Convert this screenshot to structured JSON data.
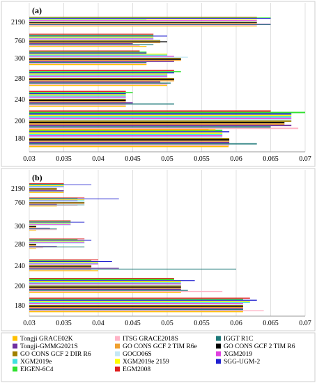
{
  "chart_data": [
    {
      "type": "bar",
      "orientation": "horizontal",
      "panel_label": "(a)",
      "xlim": [
        0.03,
        0.07
      ],
      "x_ticks": [
        "0.03",
        "0.035",
        "0.04",
        "0.045",
        "0.05",
        "0.055",
        "0.06",
        "0.065",
        "0.07"
      ],
      "categories": [
        "180",
        "200",
        "240",
        "280",
        "300",
        "760",
        "2190"
      ],
      "series": [
        {
          "name": "Tongji GRACE02K",
          "values": [
            0.0589,
            0.057,
            0.044,
            0.05,
            0.047,
            0.047,
            0.063
          ]
        },
        {
          "name": "ITSG GRACE2018S",
          "values": [
            0.059,
            0.069,
            0.044,
            0.05,
            0.047,
            0.046,
            0.063
          ]
        },
        {
          "name": "IGGT R1C",
          "values": [
            0.063,
            0.065,
            0.051,
            0.0505,
            0.047,
            0.048,
            0.065
          ]
        },
        {
          "name": "Tongji-GMMG2021S",
          "values": [
            0.059,
            0.068,
            0.045,
            0.049,
            0.051,
            0.045,
            0.065
          ]
        },
        {
          "name": "GO CONS GCF 2 TIM R6e",
          "values": [
            0.059,
            0.067,
            0.044,
            0.051,
            0.052,
            0.049,
            0.063
          ]
        },
        {
          "name": "GO CONS GCF 2 TIM R6",
          "values": [
            0.059,
            0.067,
            0.044,
            0.051,
            0.052,
            0.05,
            0.063
          ]
        },
        {
          "name": "GO CONS GCF 2 DIR R6",
          "values": [
            0.059,
            0.068,
            0.044,
            0.051,
            0.052,
            0.049,
            0.063
          ]
        },
        {
          "name": "GOCO06S",
          "values": [
            0.058,
            0.068,
            0.044,
            0.05,
            0.053,
            0.049,
            0.063
          ]
        },
        {
          "name": "XGM2019",
          "values": [
            0.058,
            0.068,
            0.044,
            0.05,
            0.051,
            0.048,
            0.063
          ]
        },
        {
          "name": "XGM2019e",
          "values": [
            0.058,
            0.068,
            0.044,
            0.05,
            0.05,
            0.048,
            0.047
          ]
        },
        {
          "name": "XGM2019e 2159",
          "values": [
            0.058,
            0.068,
            0.044,
            0.05,
            0.05,
            0.048,
            0.063
          ]
        },
        {
          "name": "SGG-UGM-2",
          "values": [
            0.059,
            0.068,
            0.044,
            0.051,
            0.047,
            0.05,
            0.065
          ]
        },
        {
          "name": "EIGEN-6C4",
          "values": [
            0.058,
            0.07,
            0.045,
            0.052,
            0.047,
            0.048,
            0.065
          ]
        },
        {
          "name": "EGM2008",
          "values": [
            0.056,
            0.065,
            0.044,
            0.051,
            0.046,
            0.048,
            0.063
          ]
        }
      ]
    },
    {
      "type": "bar",
      "orientation": "horizontal",
      "panel_label": "(b)",
      "xlim": [
        0.03,
        0.07
      ],
      "x_ticks": [
        "0.03",
        "0.035",
        "0.04",
        "0.045",
        "0.05",
        "0.055",
        "0.06",
        "0.065",
        "0.07"
      ],
      "categories": [
        "180",
        "200",
        "240",
        "280",
        "300",
        "760",
        "2190"
      ],
      "series": [
        {
          "name": "Tongji GRACE02K",
          "values": [
            0.061,
            0.052,
            0.04,
            0.031,
            0.031,
            0.034,
            0.035
          ]
        },
        {
          "name": "ITSG GRACE2018S",
          "values": [
            0.064,
            0.058,
            0.039,
            0.032,
            0.034,
            0.037,
            0.035
          ]
        },
        {
          "name": "IGGT R1C",
          "values": [
            0.061,
            0.053,
            0.06,
            0.038,
            0.034,
            0.038,
            0.035
          ]
        },
        {
          "name": "Tongji-GMMG2021S",
          "values": [
            0.061,
            0.052,
            0.043,
            0.034,
            0.033,
            0.034,
            0.035
          ]
        },
        {
          "name": "GO CONS GCF 2 TIM R6e",
          "values": [
            0.061,
            0.052,
            0.039,
            0.031,
            0.031,
            0.038,
            0.034
          ]
        },
        {
          "name": "GO CONS GCF 2 TIM R6",
          "values": [
            0.061,
            0.052,
            0.039,
            0.031,
            0.031,
            0.038,
            0.034
          ]
        },
        {
          "name": "GO CONS GCF 2 DIR R6",
          "values": [
            0.061,
            0.052,
            0.039,
            0.031,
            0.031,
            0.038,
            0.034
          ]
        },
        {
          "name": "GOCO06S",
          "values": [
            0.061,
            0.052,
            0.039,
            0.038,
            0.036,
            0.038,
            0.034
          ]
        },
        {
          "name": "XGM2019",
          "values": [
            0.061,
            0.052,
            0.04,
            0.038,
            0.036,
            0.037,
            0.035
          ]
        },
        {
          "name": "XGM2019e",
          "values": [
            0.062,
            0.052,
            0.04,
            0.038,
            0.036,
            0.038,
            0.035
          ]
        },
        {
          "name": "XGM2019e 2159",
          "values": [
            0.062,
            0.052,
            0.04,
            0.038,
            0.036,
            0.038,
            0.035
          ]
        },
        {
          "name": "SGG-UGM-2",
          "values": [
            0.063,
            0.054,
            0.042,
            0.039,
            0.038,
            0.043,
            0.039
          ]
        },
        {
          "name": "EIGEN-6C4",
          "values": [
            0.061,
            0.051,
            0.039,
            0.037,
            0.036,
            0.037,
            0.035
          ]
        },
        {
          "name": "EGM2008",
          "values": [
            0.062,
            0.051,
            0.04,
            0.038,
            0.036,
            0.038,
            0.035
          ]
        }
      ]
    }
  ],
  "legend": {
    "placement": "bottom",
    "items": [
      {
        "name": "Tongji GRACE02K",
        "color": "#FFC000"
      },
      {
        "name": "ITSG GRACE2018S",
        "color": "#FFB3C6"
      },
      {
        "name": "IGGT R1C",
        "color": "#1F7A7A"
      },
      {
        "name": "Tongji-GMMG2021S",
        "color": "#7030A0"
      },
      {
        "name": "GO CONS GCF 2 TIM R6e",
        "color": "#F0A030"
      },
      {
        "name": "GO CONS GCF 2 TIM R6",
        "color": "#000000"
      },
      {
        "name": "GO CONS GCF 2 DIR R6",
        "color": "#A08000"
      },
      {
        "name": "GOCO06S",
        "color": "#C5E8F5"
      },
      {
        "name": "XGM2019",
        "color": "#E040E0"
      },
      {
        "name": "XGM2019e",
        "color": "#40E0E0"
      },
      {
        "name": "XGM2019e 2159",
        "color": "#FFFF00"
      },
      {
        "name": "SGG-UGM-2",
        "color": "#2020D0"
      },
      {
        "name": "EIGEN-6C4",
        "color": "#30E030"
      },
      {
        "name": "EGM2008",
        "color": "#E02020"
      }
    ]
  }
}
